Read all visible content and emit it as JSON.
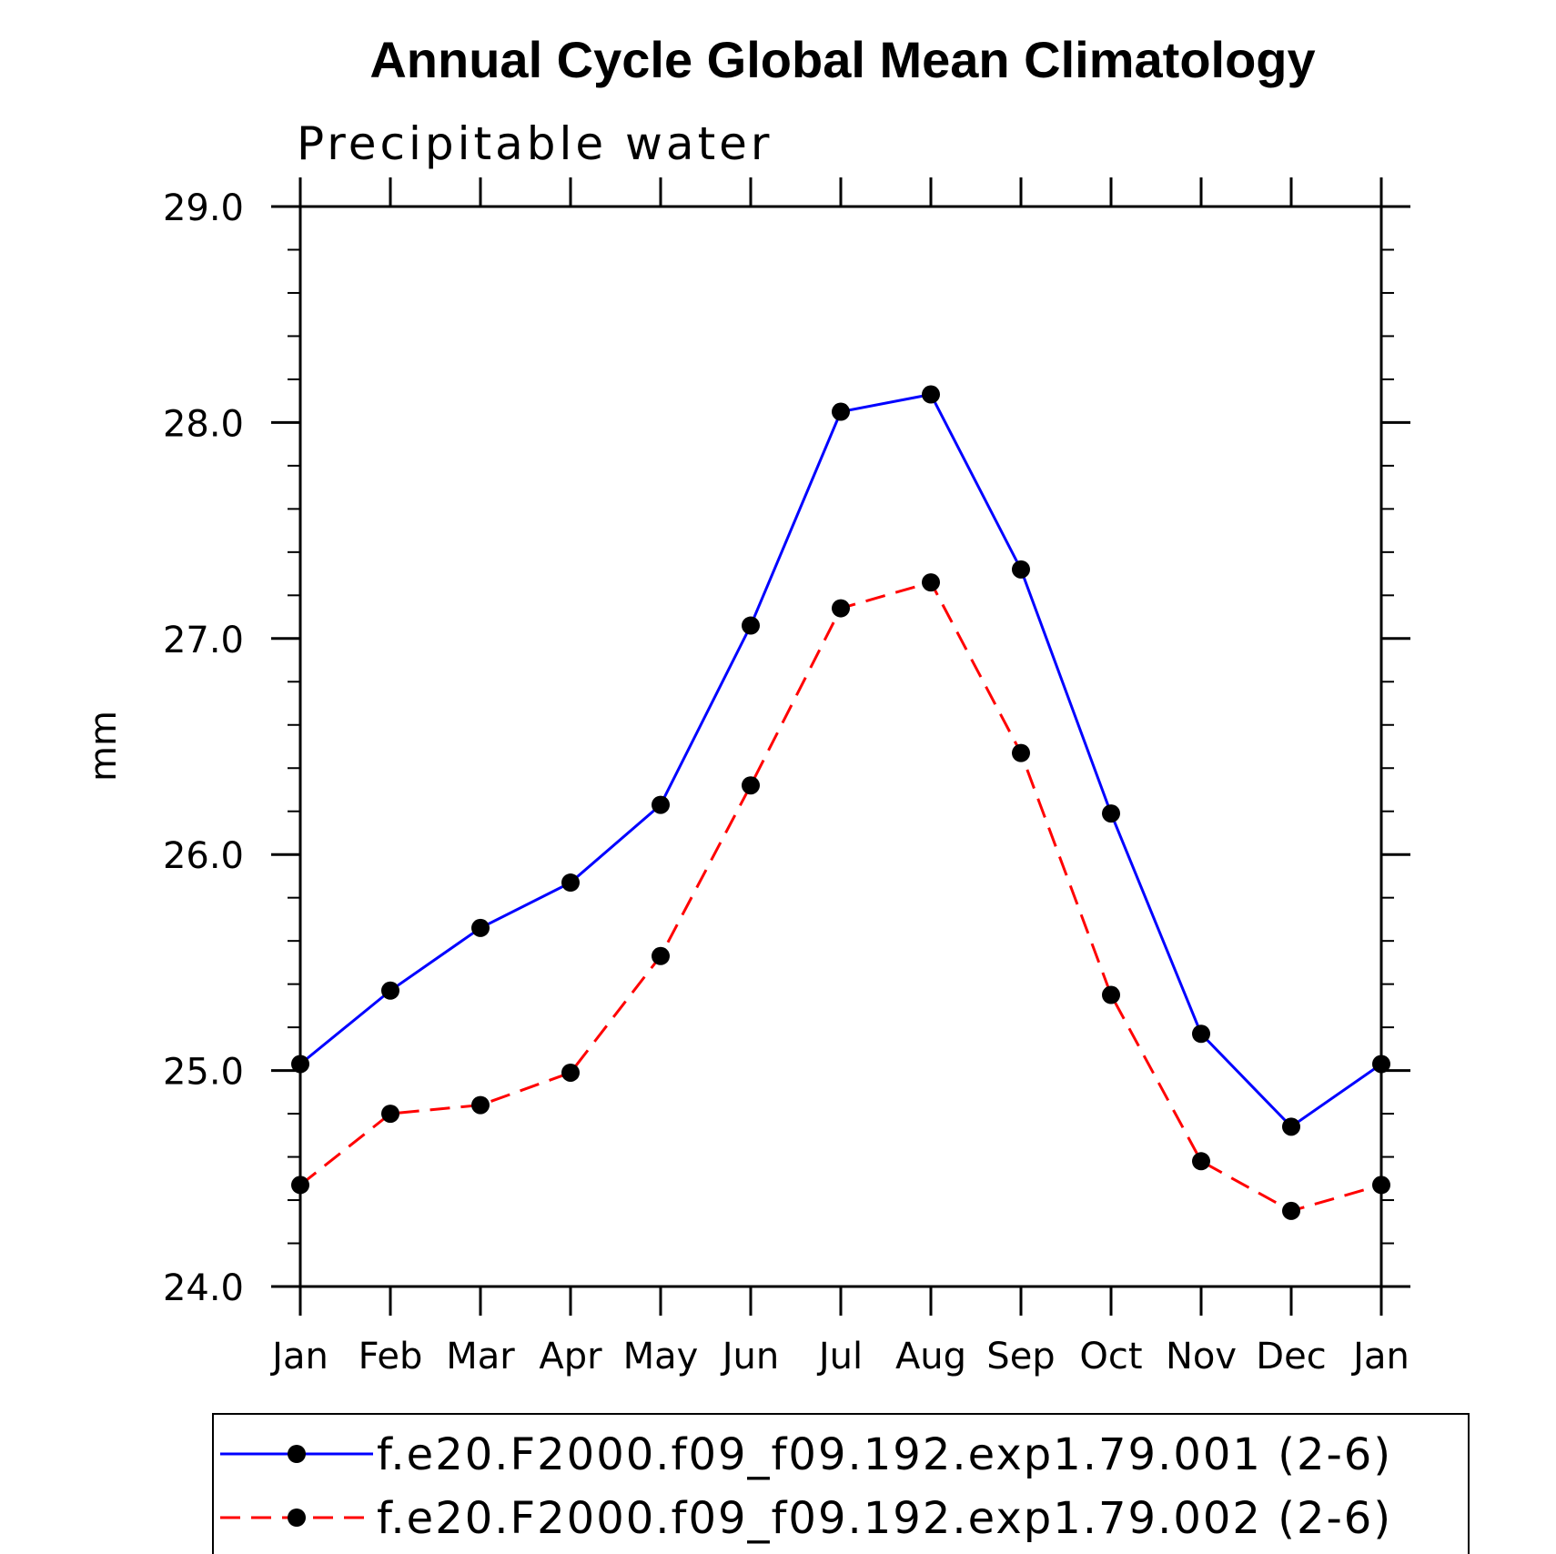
{
  "chart_data": {
    "type": "line",
    "title": "Annual Cycle Global Mean Climatology",
    "subtitle": "Precipitable water",
    "xlabel": "",
    "ylabel": "mm",
    "ylim": [
      24.0,
      29.0
    ],
    "yticks": [
      "24.0",
      "25.0",
      "26.0",
      "27.0",
      "28.0",
      "29.0"
    ],
    "categories": [
      "Jan",
      "Feb",
      "Mar",
      "Apr",
      "May",
      "Jun",
      "Jul",
      "Aug",
      "Sep",
      "Oct",
      "Nov",
      "Dec",
      "Jan"
    ],
    "series": [
      {
        "name": "f.e20.F2000.f09_f09.192.exp1.79.001 (2-6)",
        "color": "#0000ff",
        "dash": "solid",
        "values": [
          25.03,
          25.37,
          25.66,
          25.87,
          26.23,
          27.06,
          28.05,
          28.13,
          27.32,
          26.19,
          25.17,
          24.74,
          25.03
        ]
      },
      {
        "name": "f.e20.F2000.f09_f09.192.exp1.79.002 (2-6)",
        "color": "#ff0000",
        "dash": "dashed",
        "values": [
          24.47,
          24.8,
          24.84,
          24.99,
          25.53,
          26.32,
          27.14,
          27.26,
          26.47,
          25.35,
          24.58,
          24.35,
          24.47
        ]
      }
    ],
    "legend_position": "bottom",
    "minor_ticks_per_major": 5
  }
}
